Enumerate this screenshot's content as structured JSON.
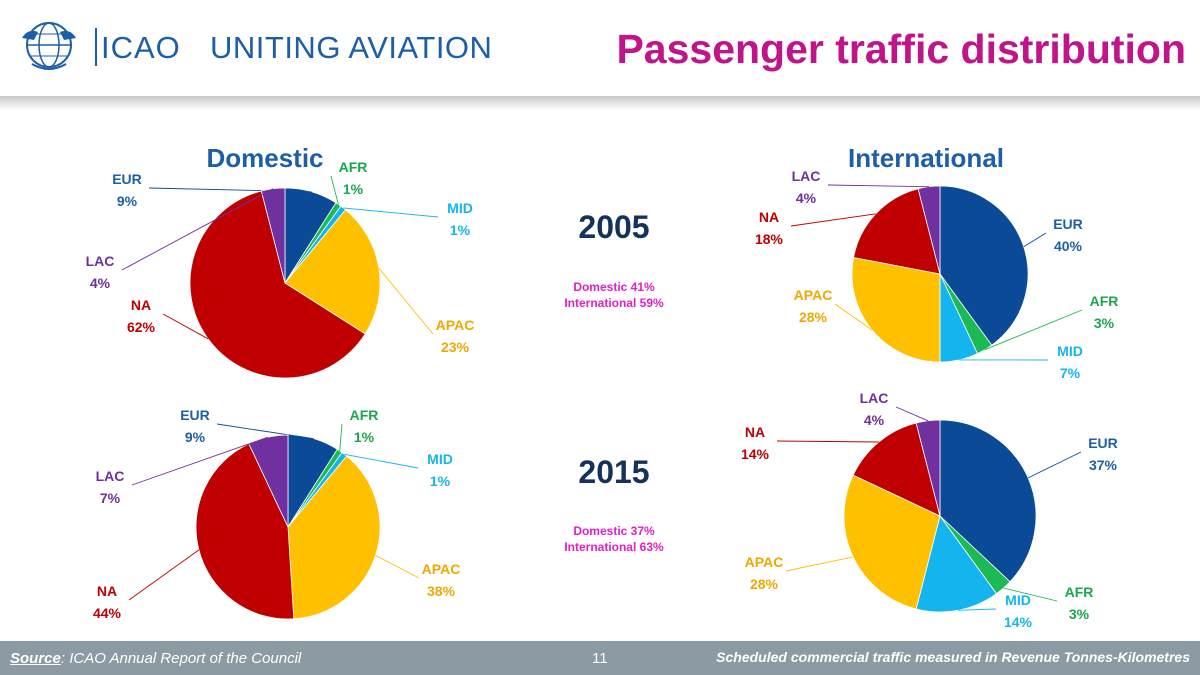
{
  "header": {
    "org_name": "ICAO",
    "tagline": "UNITING AVIATION",
    "title": "Passenger traffic distribution"
  },
  "footer": {
    "source_label": "Source",
    "source_text": ": ICAO Annual Report of the Council",
    "page_number": "11",
    "note": "Scheduled commercial traffic measured in Revenue Tonnes-Kilometres"
  },
  "colors": {
    "EUR": "#0b4a96",
    "AFR": "#1db954",
    "MID": "#14b5ef",
    "APAC": "#ffc000",
    "NA": "#c00000",
    "LAC": "#7030a0",
    "title": "#c0148a",
    "heading": "#1c5ea8",
    "year": "#14325a",
    "split": "#e020c0"
  },
  "chart_data": [
    {
      "type": "pie",
      "title": "Domestic",
      "year": "2005",
      "slices": [
        {
          "label": "EUR",
          "value": 9,
          "text": "9%"
        },
        {
          "label": "AFR",
          "value": 1,
          "text": "1%"
        },
        {
          "label": "MID",
          "value": 1,
          "text": "1%"
        },
        {
          "label": "APAC",
          "value": 23,
          "text": "23%"
        },
        {
          "label": "NA",
          "value": 62,
          "text": "62%"
        },
        {
          "label": "LAC",
          "value": 4,
          "text": "4%"
        }
      ]
    },
    {
      "type": "pie",
      "title": "International",
      "year": "2005",
      "slices": [
        {
          "label": "EUR",
          "value": 40,
          "text": "40%"
        },
        {
          "label": "AFR",
          "value": 3,
          "text": "3%"
        },
        {
          "label": "MID",
          "value": 7,
          "text": "7%"
        },
        {
          "label": "APAC",
          "value": 28,
          "text": "28%"
        },
        {
          "label": "NA",
          "value": 18,
          "text": "18%"
        },
        {
          "label": "LAC",
          "value": 4,
          "text": "4%"
        }
      ]
    },
    {
      "type": "pie",
      "title": "Domestic",
      "year": "2015",
      "slices": [
        {
          "label": "EUR",
          "value": 9,
          "text": "9%"
        },
        {
          "label": "AFR",
          "value": 1,
          "text": "1%"
        },
        {
          "label": "MID",
          "value": 1,
          "text": "1%"
        },
        {
          "label": "APAC",
          "value": 38,
          "text": "38%"
        },
        {
          "label": "NA",
          "value": 44,
          "text": "44%"
        },
        {
          "label": "LAC",
          "value": 7,
          "text": "7%"
        }
      ]
    },
    {
      "type": "pie",
      "title": "International",
      "year": "2015",
      "slices": [
        {
          "label": "EUR",
          "value": 37,
          "text": "37%"
        },
        {
          "label": "AFR",
          "value": 3,
          "text": "3%"
        },
        {
          "label": "MID",
          "value": 14,
          "text": "14%"
        },
        {
          "label": "APAC",
          "value": 28,
          "text": "28%"
        },
        {
          "label": "NA",
          "value": 14,
          "text": "14%"
        },
        {
          "label": "LAC",
          "value": 4,
          "text": "4%"
        }
      ]
    }
  ],
  "column_headings": {
    "domestic": "Domestic",
    "international": "International"
  },
  "years": [
    {
      "year": "2005",
      "domestic_share": "Domestic 41%",
      "international_share": "International 59%"
    },
    {
      "year": "2015",
      "domestic_share": "Domestic 37%",
      "international_share": "International 63%"
    }
  ]
}
